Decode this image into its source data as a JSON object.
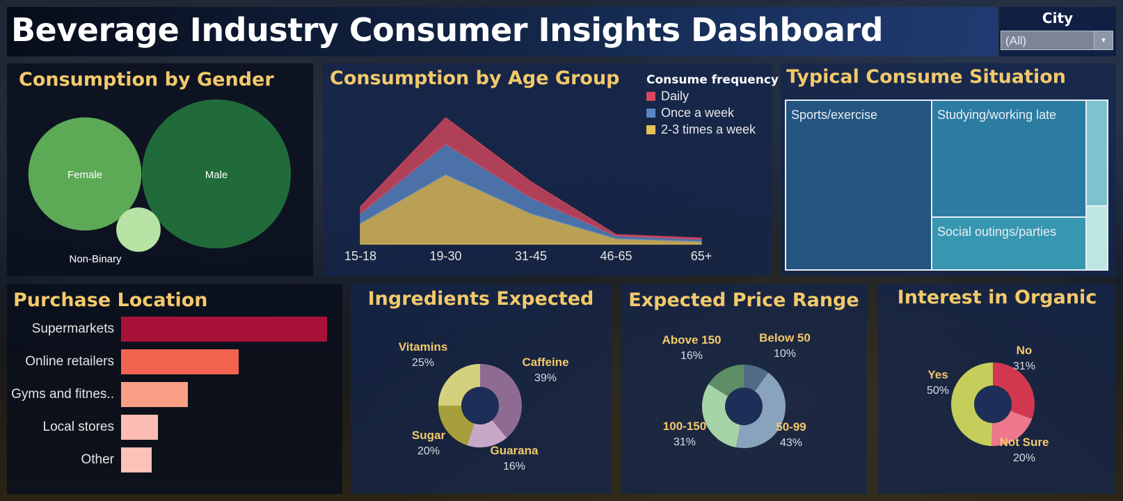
{
  "title": "Beverage Industry Consumer Insights Dashboard",
  "filter": {
    "label": "City",
    "value": "(All)",
    "arrow_icon": "chevron-down-icon"
  },
  "gender": {
    "title": "Consumption by Gender",
    "chart_data": {
      "type": "bubble",
      "items": [
        {
          "name": "Female",
          "value": 26,
          "color": "#5ca956"
        },
        {
          "name": "Male",
          "value": 45,
          "color": "#216b3a"
        },
        {
          "name": "Non-Binary",
          "value": 4,
          "color": "#b7e3a5"
        }
      ]
    }
  },
  "age": {
    "title": "Consumption by Age Group",
    "legend_title": "Consume frequency",
    "chart_data": {
      "type": "area",
      "stacked": true,
      "categories": [
        "15-18",
        "19-30",
        "31-45",
        "46-65",
        "65+"
      ],
      "series": [
        {
          "name": "2-3 times a week",
          "color": "#e8c35a",
          "values": [
            30,
            100,
            44,
            8,
            4
          ]
        },
        {
          "name": "Once a week",
          "color": "#5a87c4",
          "values": [
            14,
            44,
            23,
            4,
            3
          ]
        },
        {
          "name": "Daily",
          "color": "#d9485e",
          "values": [
            10,
            38,
            23,
            2,
            2
          ]
        }
      ],
      "ylim": [
        0,
        200
      ]
    }
  },
  "situation": {
    "title": "Typical Consume Situation",
    "chart_data": {
      "type": "treemap",
      "items": [
        {
          "name": "Sports/exercise",
          "color": "#245580"
        },
        {
          "name": "Studying/working late",
          "color": "#2c7ba1"
        },
        {
          "name": "Social outings/parties",
          "color": "#3797b0"
        },
        {
          "name": "",
          "color": "#7cc3cd"
        },
        {
          "name": "",
          "color": "#bde6e0"
        }
      ]
    }
  },
  "purchase": {
    "title": "Purchase Location",
    "chart_data": {
      "type": "bar",
      "orientation": "horizontal",
      "categories": [
        "Supermarkets",
        "Online retailers",
        "Gyms and fitnes..",
        "Local stores",
        "Other"
      ],
      "values": [
        100,
        57,
        32.5,
        18,
        15
      ],
      "colors": [
        "#a81238",
        "#f06450",
        "#fb9e86",
        "#fdbdb2",
        "#fdc2b8"
      ]
    }
  },
  "ingredients": {
    "title": "Ingredients Expected",
    "chart_data": {
      "type": "pie",
      "slices": [
        {
          "label": "Caffeine",
          "value": 39,
          "pct": "39%",
          "color": "#8e6b91"
        },
        {
          "label": "Guarana",
          "value": 16,
          "pct": "16%",
          "color": "#c8a8c8"
        },
        {
          "label": "Sugar",
          "value": 20,
          "pct": "20%",
          "color": "#a79f3b"
        },
        {
          "label": "Vitamins",
          "value": 25,
          "pct": "25%",
          "color": "#d3d17c"
        }
      ]
    }
  },
  "price": {
    "title": "Expected Price Range",
    "chart_data": {
      "type": "pie",
      "slices": [
        {
          "label": "Below 50",
          "value": 10,
          "pct": "10%",
          "color": "#4f6b87"
        },
        {
          "label": "50-99",
          "value": 43,
          "pct": "43%",
          "color": "#8aa3bd"
        },
        {
          "label": "100-150",
          "value": 31,
          "pct": "31%",
          "color": "#a7d3a8"
        },
        {
          "label": "Above 150",
          "value": 16,
          "pct": "16%",
          "color": "#5d8e66"
        }
      ]
    }
  },
  "organic": {
    "title": "Interest in Organic",
    "chart_data": {
      "type": "pie",
      "slices": [
        {
          "label": "No",
          "value": 31,
          "pct": "31%",
          "color": "#d1384f"
        },
        {
          "label": "Not Sure",
          "value": 20,
          "pct": "20%",
          "color": "#ef778b"
        },
        {
          "label": "Yes",
          "value": 50,
          "pct": "50%",
          "color": "#c5ce5b"
        }
      ]
    }
  }
}
